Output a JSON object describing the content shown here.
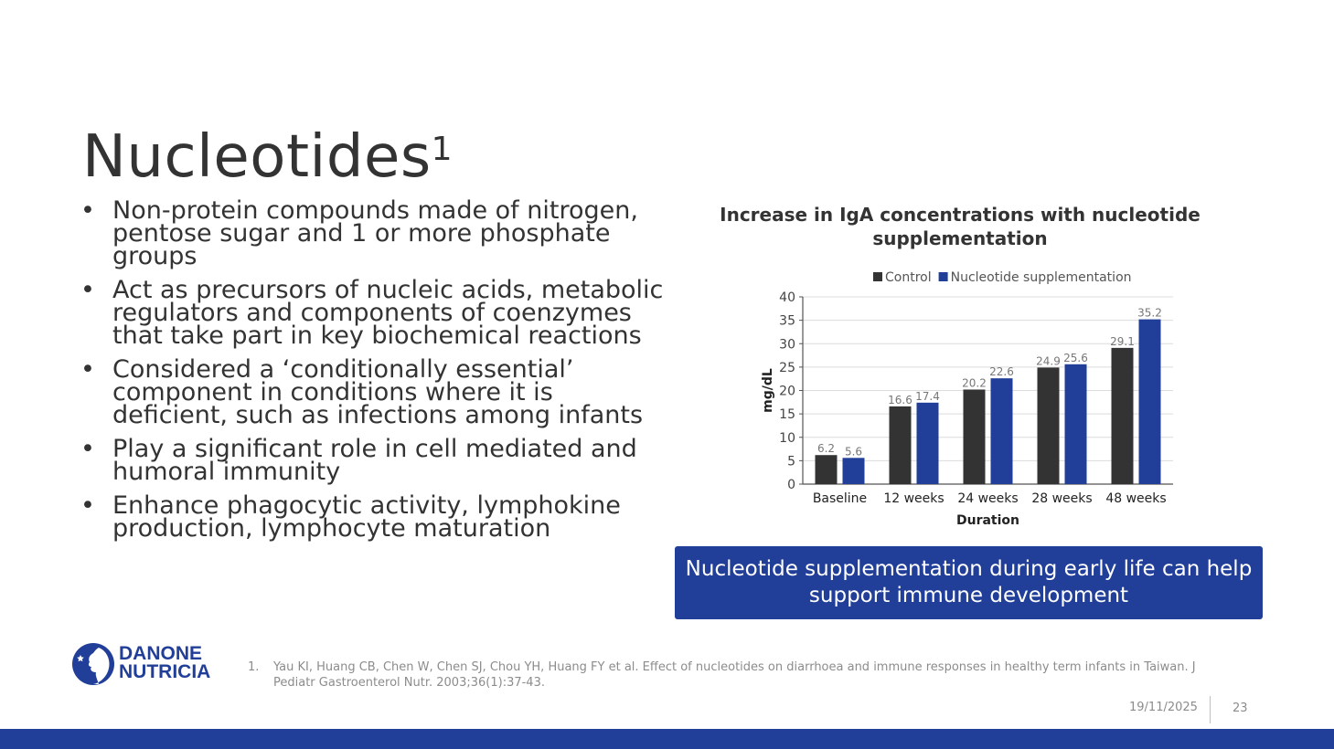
{
  "slide": {
    "title": "Nucleotides",
    "title_superscript": "1",
    "bullets": [
      "Non-protein compounds made of nitrogen, pentose sugar and 1 or more phosphate groups",
      "Act as precursors of nucleic acids, metabolic regulators and components of coenzymes that take part in key biochemical reactions",
      "Considered a ‘conditionally essential’ component in conditions where it is deficient, such as infections among infants",
      "Play a significant role in cell mediated and humoral immunity",
      "Enhance phagocytic activity, lymphokine production, lymphocyte maturation"
    ],
    "bullet_symbol": "•",
    "callout": "Nucleotide supplementation during early life can help support immune development",
    "logo": {
      "line1": "DANONE",
      "line2": "NUTRICIA"
    },
    "reference": {
      "number": "1.",
      "text": "Yau KI, Huang CB, Chen W, Chen SJ, Chou YH, Huang FY et al. Effect of nucleotides on diarrhoea and immune responses in healthy term infants in Taiwan. J Pediatr Gastroenterol Nutr. 2003;36(1):37-43."
    },
    "date": "19/11/2025",
    "page_number": "23",
    "colors": {
      "brand_blue": "#213f99",
      "control": "#333333",
      "text": "#333333",
      "muted": "#8c8c8c"
    }
  },
  "chart_data": {
    "type": "bar",
    "title": "Increase in IgA concentrations with nucleotide supplementation",
    "xlabel": "Duration",
    "ylabel": "mg/dL",
    "categories": [
      "Baseline",
      "12 weeks",
      "24 weeks",
      "28 weeks",
      "48 weeks"
    ],
    "series": [
      {
        "name": "Control",
        "color": "#333333",
        "values": [
          6.2,
          16.6,
          20.2,
          24.9,
          29.1
        ]
      },
      {
        "name": "Nucleotide supplementation",
        "color": "#213f99",
        "values": [
          5.6,
          17.4,
          22.6,
          25.6,
          35.2
        ]
      }
    ],
    "ylim": [
      0,
      40
    ],
    "yticks": [
      0,
      5,
      10,
      15,
      20,
      25,
      30,
      35,
      40
    ],
    "grid": true,
    "legend_position": "top",
    "data_labels": true
  }
}
